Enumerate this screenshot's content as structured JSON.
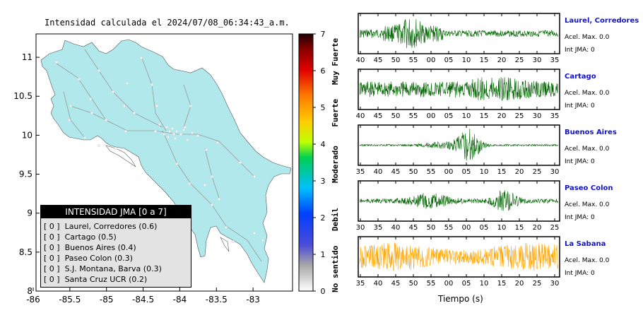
{
  "title": "Intensidad calculada el 2024/07/08_06:34:43_a.m.",
  "chart_data": [
    {
      "type": "heatmap",
      "title": "Intensidad calculada el 2024/07/08_06:34:43_a.m.",
      "xlim": [
        -86,
        -82.5
      ],
      "ylim": [
        8,
        11.3
      ],
      "x_ticks": [
        "-86",
        "-85.5",
        "-85",
        "-84.5",
        "-84",
        "-83.5",
        "-83"
      ],
      "y_ticks": [
        "8",
        "8.5",
        "9",
        "9.5",
        "10",
        "10.5",
        "11"
      ],
      "colorbar": {
        "range": [
          0,
          7
        ],
        "ticks": [
          "0",
          "1",
          "2",
          "3",
          "4",
          "5",
          "6",
          "7"
        ],
        "bands": [
          "No sentido",
          "Debil",
          "Moderado",
          "Fuerte",
          "Muy Fuerte"
        ]
      },
      "fill_intensity": 0,
      "legend": {
        "header": "INTENSIDAD JMA [0 a 7]",
        "items": [
          {
            "level": "[ 0 ]",
            "station": "Laurel, Corredores (0.6)"
          },
          {
            "level": "[ 0 ]",
            "station": "Cartago (0.5)"
          },
          {
            "level": "[ 0 ]",
            "station": "Buenos Aires (0.4)"
          },
          {
            "level": "[ 0 ]",
            "station": "Paseo Colon (0.3)"
          },
          {
            "level": "[ 0 ]",
            "station": "S.J. Montana, Barva (0.3)"
          },
          {
            "level": "[ 0 ]",
            "station": "Santa Cruz UCR (0.2)"
          }
        ]
      }
    },
    {
      "type": "line",
      "xlabel": "Tiempo (s)",
      "series": [
        {
          "name": "Laurel, Corredores",
          "acel": "Acel. Max. 0.0",
          "int": "Int JMA: 0",
          "color": "#006400",
          "x_ticks": [
            "40",
            "45",
            "50",
            "55",
            "00",
            "05",
            "10",
            "15",
            "20",
            "25",
            "30",
            "35"
          ]
        },
        {
          "name": "Cartago",
          "acel": "Acel. Max. 0.0",
          "int": "Int JMA: 0",
          "color": "#006400",
          "x_ticks": [
            "40",
            "45",
            "50",
            "55",
            "00",
            "05",
            "10",
            "15",
            "20",
            "25",
            "30",
            "35"
          ]
        },
        {
          "name": "Buenos Aires",
          "acel": "Acel. Max. 0.0",
          "int": "Int JMA: 0",
          "color": "#006400",
          "x_ticks": [
            "35",
            "40",
            "45",
            "50",
            "55",
            "00",
            "05",
            "10",
            "15",
            "20",
            "25",
            "30"
          ]
        },
        {
          "name": "Paseo Colon",
          "acel": "Acel. Max. 0.0",
          "int": "Int JMA: 0",
          "color": "#006400",
          "x_ticks": [
            "30",
            "35",
            "40",
            "45",
            "50",
            "55",
            "00",
            "05",
            "10",
            "15",
            "20",
            "25"
          ]
        },
        {
          "name": "La Sabana",
          "acel": "Acel. Max. 0.0",
          "int": "Int JMA: 0",
          "color": "#ffa500",
          "x_ticks": [
            "35",
            "40",
            "45",
            "50",
            "55",
            "00",
            "05",
            "10",
            "15",
            "20",
            "25",
            "30"
          ]
        }
      ]
    }
  ]
}
